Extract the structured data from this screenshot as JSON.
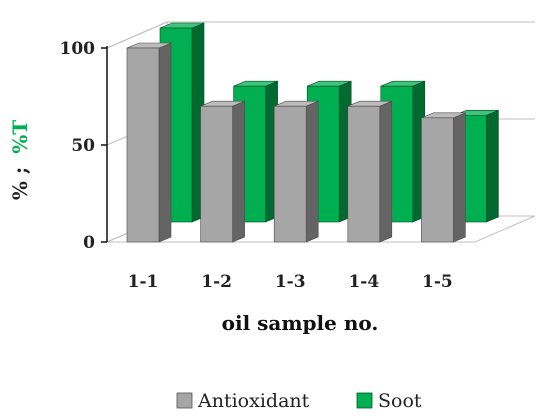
{
  "chart_data": {
    "type": "bar",
    "categories": [
      "1-1",
      "1-2",
      "1-3",
      "1-4",
      "1-5"
    ],
    "series": [
      {
        "name": "Antioxidant",
        "values": [
          100,
          70,
          70,
          70,
          64
        ],
        "color": "#a6a6a6"
      },
      {
        "name": "Soot",
        "values": [
          100,
          70,
          70,
          70,
          55
        ],
        "color": "#00b050"
      }
    ],
    "xlabel": "oil sample no.",
    "ylabel_parts": {
      "first": "% ;",
      "second": "%T"
    },
    "ylabel_colors": {
      "first": "#222222",
      "second": "#00b050"
    },
    "yticks": [
      0,
      50,
      100
    ],
    "ylim": [
      0,
      100
    ],
    "grid": true,
    "legend_position": "bottom",
    "style": "3d-clustered-column"
  }
}
